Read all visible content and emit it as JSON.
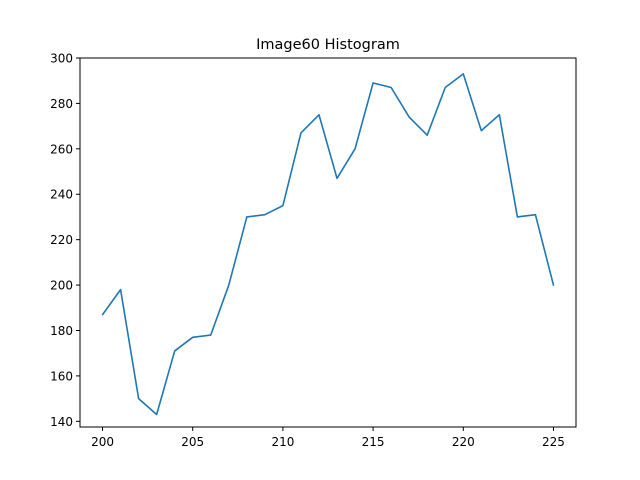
{
  "chart_data": {
    "type": "line",
    "title": "Image60 Histogram",
    "xlabel": "",
    "ylabel": "",
    "xlim": [
      198.75,
      226.25
    ],
    "ylim": [
      137.5,
      300
    ],
    "xticks": [
      200,
      205,
      210,
      215,
      220,
      225
    ],
    "yticks": [
      140,
      160,
      180,
      200,
      220,
      240,
      260,
      280,
      300
    ],
    "grid": false,
    "series": [
      {
        "color": "#1f77b4",
        "x": [
          200,
          201,
          202,
          203,
          204,
          205,
          206,
          207,
          208,
          209,
          210,
          211,
          212,
          213,
          214,
          215,
          216,
          217,
          218,
          219,
          220,
          221,
          222,
          223,
          224,
          225
        ],
        "y": [
          187,
          198,
          150,
          143,
          171,
          177,
          178,
          200,
          230,
          231,
          235,
          267,
          275,
          247,
          260,
          289,
          287,
          274,
          266,
          287,
          293,
          268,
          275,
          230,
          231,
          200
        ]
      }
    ]
  }
}
